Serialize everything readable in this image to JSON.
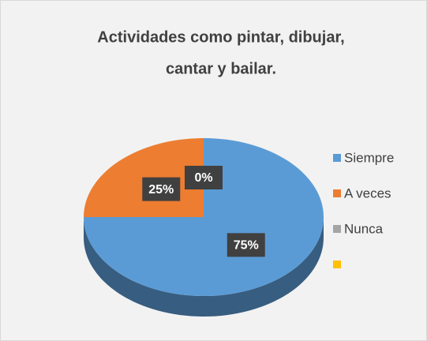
{
  "chart_data": {
    "type": "pie",
    "title": "Actividades como pintar, dibujar, cantar y bailar.",
    "categories": [
      "Siempre",
      "A veces",
      "Nunca",
      null
    ],
    "values": [
      75,
      25,
      0,
      0
    ],
    "value_labels": [
      "75%",
      "25%",
      "0%",
      null
    ],
    "colors": [
      "#5b9bd5",
      "#ed7d31",
      "#a5a5a5",
      "#ffc000"
    ],
    "legend": "right"
  }
}
